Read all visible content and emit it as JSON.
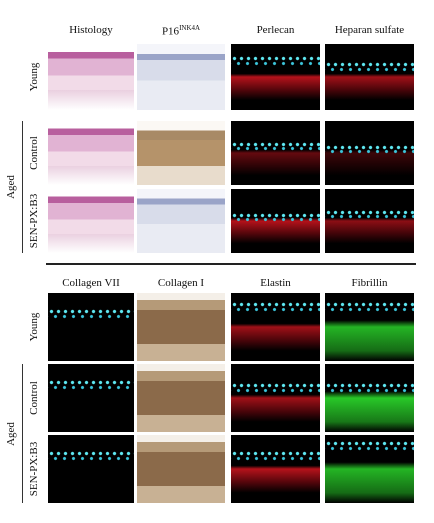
{
  "top": {
    "columns": [
      "Histology",
      {
        "base": "P16",
        "sup": "INK4A"
      },
      "Perlecan",
      "Heparan sulfate"
    ],
    "rows": [
      "Young",
      "Control",
      "SEN-PX:B3"
    ],
    "group": "Aged"
  },
  "bottom": {
    "columns": [
      "Collagen VII",
      "Collagen I",
      "Elastin",
      "Fibrillin"
    ],
    "rows": [
      "Young",
      "Control",
      "SEN-PX:B3"
    ],
    "group": "Aged"
  }
}
